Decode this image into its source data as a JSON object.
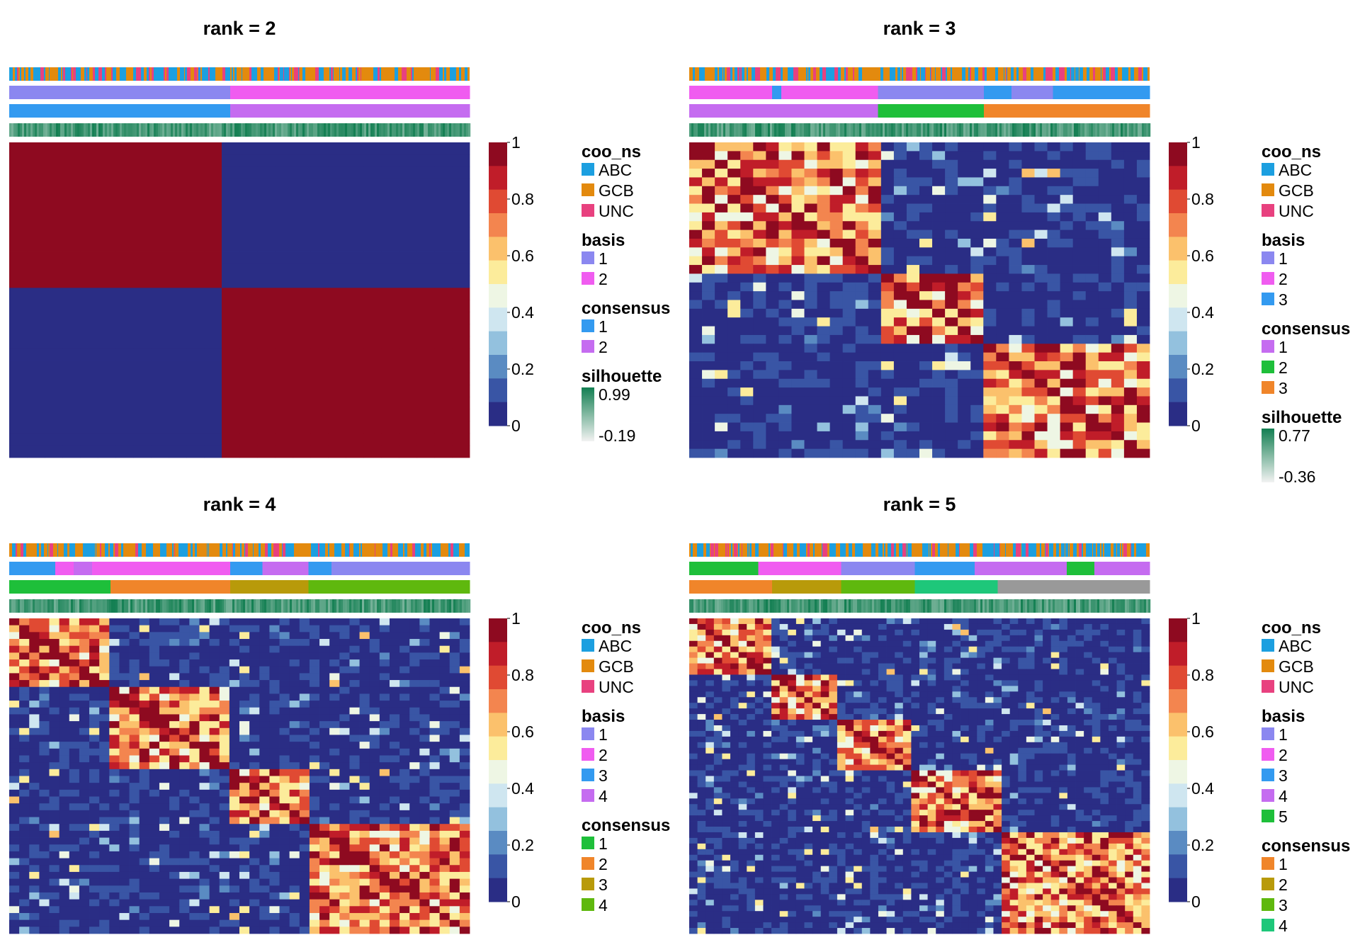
{
  "chart_data": [
    {
      "type": "heatmap",
      "title": "rank =  2",
      "annotation_tracks": [
        "coo_ns",
        "basis",
        "consensus",
        "silhouette"
      ],
      "colorbar": {
        "ticks": [
          "1",
          "0.8",
          "0.6",
          "0.4",
          "0.2",
          "0"
        ],
        "range": [
          0,
          1
        ]
      },
      "block_boundaries": [
        0.0,
        0.48,
        1.0
      ],
      "basis_segments": [
        {
          "level": "1",
          "until": 0.48
        },
        {
          "level": "2",
          "until": 1.0
        }
      ],
      "consensus_segments": [
        {
          "level": "1",
          "until": 0.48
        },
        {
          "level": "2",
          "until": 1.0
        }
      ],
      "legends": [
        {
          "title": "coo_ns",
          "kind": "discrete",
          "levels": [
            {
              "label": "ABC",
              "color": "#1c9fe0"
            },
            {
              "label": "GCB",
              "color": "#e38a0e"
            },
            {
              "label": "UNC",
              "color": "#e8417f"
            }
          ]
        },
        {
          "title": "basis",
          "kind": "discrete",
          "levels": [
            {
              "label": "1",
              "color": "#8b87f0"
            },
            {
              "label": "2",
              "color": "#f05cf0"
            }
          ]
        },
        {
          "title": "consensus",
          "kind": "discrete",
          "levels": [
            {
              "label": "1",
              "color": "#339af0"
            },
            {
              "label": "2",
              "color": "#c56cf0"
            }
          ]
        },
        {
          "title": "silhouette",
          "kind": "continuous",
          "max": "0.99",
          "min": "-0.19"
        }
      ]
    },
    {
      "type": "heatmap",
      "title": "rank =  3",
      "annotation_tracks": [
        "coo_ns",
        "basis",
        "consensus",
        "silhouette"
      ],
      "colorbar": {
        "ticks": [
          "1",
          "0.8",
          "0.6",
          "0.4",
          "0.2",
          "0"
        ],
        "range": [
          0,
          1
        ]
      },
      "block_boundaries": [
        0.0,
        0.41,
        0.64,
        1.0
      ],
      "basis_segments": [
        {
          "level": "2",
          "until": 0.18
        },
        {
          "level": "3",
          "until": 0.2
        },
        {
          "level": "2",
          "until": 0.41
        },
        {
          "level": "1",
          "until": 0.64
        },
        {
          "level": "3",
          "until": 0.7
        },
        {
          "level": "1",
          "until": 0.79
        },
        {
          "level": "3",
          "until": 1.0
        }
      ],
      "consensus_segments": [
        {
          "level": "1",
          "until": 0.41
        },
        {
          "level": "2",
          "until": 0.64
        },
        {
          "level": "3",
          "until": 1.0
        }
      ],
      "legends": [
        {
          "title": "coo_ns",
          "kind": "discrete",
          "levels": [
            {
              "label": "ABC",
              "color": "#1c9fe0"
            },
            {
              "label": "GCB",
              "color": "#e38a0e"
            },
            {
              "label": "UNC",
              "color": "#e8417f"
            }
          ]
        },
        {
          "title": "basis",
          "kind": "discrete",
          "levels": [
            {
              "label": "1",
              "color": "#8b87f0"
            },
            {
              "label": "2",
              "color": "#f05cf0"
            },
            {
              "label": "3",
              "color": "#339af0"
            }
          ]
        },
        {
          "title": "consensus",
          "kind": "discrete",
          "levels": [
            {
              "label": "1",
              "color": "#c56cf0"
            },
            {
              "label": "2",
              "color": "#1ebf3a"
            },
            {
              "label": "3",
              "color": "#f0852a"
            }
          ]
        },
        {
          "title": "silhouette",
          "kind": "continuous",
          "max": "0.77",
          "min": "-0.36"
        }
      ]
    },
    {
      "type": "heatmap",
      "title": "rank =  4",
      "annotation_tracks": [
        "coo_ns",
        "basis",
        "consensus",
        "silhouette"
      ],
      "colorbar": {
        "ticks": [
          "1",
          "0.8",
          "0.6",
          "0.4",
          "0.2",
          "0"
        ],
        "range": [
          0,
          1
        ]
      },
      "block_boundaries": [
        0.0,
        0.22,
        0.48,
        0.65,
        1.0
      ],
      "basis_segments": [
        {
          "level": "3",
          "until": 0.1
        },
        {
          "level": "2",
          "until": 0.14
        },
        {
          "level": "4",
          "until": 0.18
        },
        {
          "level": "2",
          "until": 0.48
        },
        {
          "level": "3",
          "until": 0.55
        },
        {
          "level": "4",
          "until": 0.65
        },
        {
          "level": "3",
          "until": 0.7
        },
        {
          "level": "1",
          "until": 1.0
        }
      ],
      "consensus_segments": [
        {
          "level": "1",
          "until": 0.22
        },
        {
          "level": "2",
          "until": 0.48
        },
        {
          "level": "3",
          "until": 0.65
        },
        {
          "level": "4",
          "until": 1.0
        }
      ],
      "legends": [
        {
          "title": "coo_ns",
          "kind": "discrete",
          "levels": [
            {
              "label": "ABC",
              "color": "#1c9fe0"
            },
            {
              "label": "GCB",
              "color": "#e38a0e"
            },
            {
              "label": "UNC",
              "color": "#e8417f"
            }
          ]
        },
        {
          "title": "basis",
          "kind": "discrete",
          "levels": [
            {
              "label": "1",
              "color": "#8b87f0"
            },
            {
              "label": "2",
              "color": "#f05cf0"
            },
            {
              "label": "3",
              "color": "#339af0"
            },
            {
              "label": "4",
              "color": "#c56cf0"
            }
          ]
        },
        {
          "title": "consensus",
          "kind": "discrete",
          "levels": [
            {
              "label": "1",
              "color": "#1ebf3a"
            },
            {
              "label": "2",
              "color": "#f0852a"
            },
            {
              "label": "3",
              "color": "#b89a0a"
            },
            {
              "label": "4",
              "color": "#5fb80e"
            }
          ]
        }
      ]
    },
    {
      "type": "heatmap",
      "title": "rank =  5",
      "annotation_tracks": [
        "coo_ns",
        "basis",
        "consensus",
        "silhouette"
      ],
      "colorbar": {
        "ticks": [
          "1",
          "0.8",
          "0.6",
          "0.4",
          "0.2",
          "0"
        ],
        "range": [
          0,
          1
        ]
      },
      "block_boundaries": [
        0.0,
        0.18,
        0.33,
        0.49,
        0.67,
        1.0
      ],
      "basis_segments": [
        {
          "level": "5",
          "until": 0.15
        },
        {
          "level": "2",
          "until": 0.33
        },
        {
          "level": "1",
          "until": 0.49
        },
        {
          "level": "3",
          "until": 0.62
        },
        {
          "level": "4",
          "until": 0.82
        },
        {
          "level": "5",
          "until": 0.88
        },
        {
          "level": "4",
          "until": 1.0
        }
      ],
      "consensus_segments": [
        {
          "level": "1",
          "until": 0.18
        },
        {
          "level": "2",
          "until": 0.33
        },
        {
          "level": "3",
          "until": 0.49
        },
        {
          "level": "4",
          "until": 0.67
        },
        {
          "level": "5",
          "until": 1.0
        }
      ],
      "legends": [
        {
          "title": "coo_ns",
          "kind": "discrete",
          "levels": [
            {
              "label": "ABC",
              "color": "#1c9fe0"
            },
            {
              "label": "GCB",
              "color": "#e38a0e"
            },
            {
              "label": "UNC",
              "color": "#e8417f"
            }
          ]
        },
        {
          "title": "basis",
          "kind": "discrete",
          "levels": [
            {
              "label": "1",
              "color": "#8b87f0"
            },
            {
              "label": "2",
              "color": "#f05cf0"
            },
            {
              "label": "3",
              "color": "#339af0"
            },
            {
              "label": "4",
              "color": "#c56cf0"
            },
            {
              "label": "5",
              "color": "#1ebf3a"
            }
          ]
        },
        {
          "title": "consensus",
          "kind": "discrete",
          "levels": [
            {
              "label": "1",
              "color": "#f0852a"
            },
            {
              "label": "2",
              "color": "#b89a0a"
            },
            {
              "label": "3",
              "color": "#5fb80e"
            },
            {
              "label": "4",
              "color": "#1ec77a"
            }
          ]
        }
      ]
    }
  ],
  "colors": {
    "heatmap_scale": [
      "#2a2d85",
      "#3955a5",
      "#5a8bc2",
      "#93c1de",
      "#cfe6f0",
      "#eef6e4",
      "#fcec9b",
      "#fbc16c",
      "#f3854f",
      "#e04a33",
      "#c01d29",
      "#8e0a20"
    ],
    "silhouette_high": "#137f52",
    "silhouette_low": "#f2f2f2"
  }
}
